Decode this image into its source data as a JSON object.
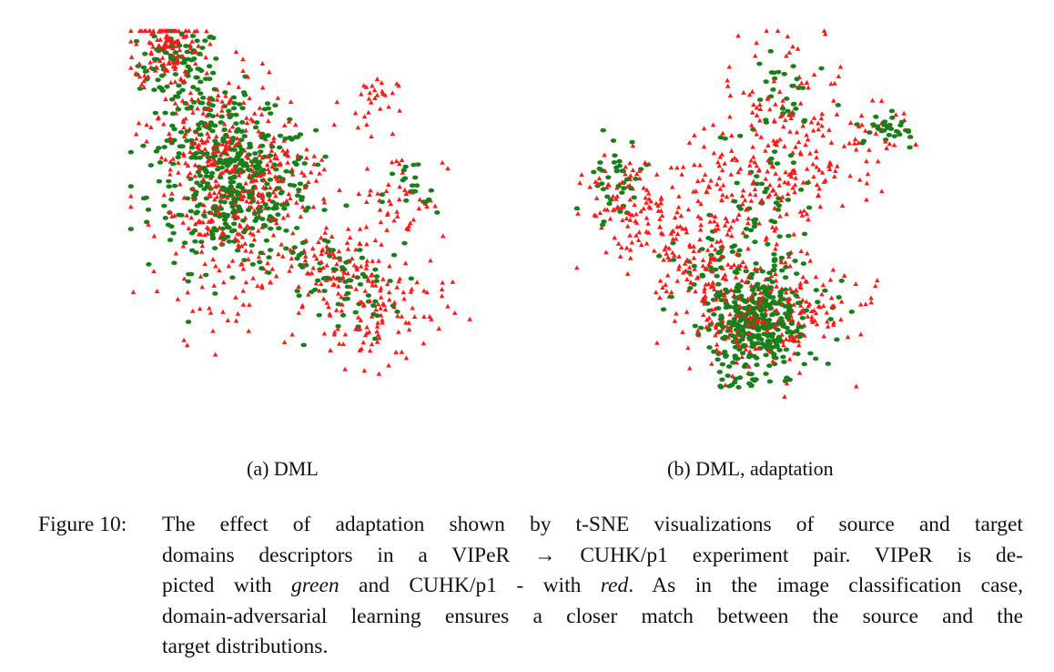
{
  "figure": {
    "label": "Figure 10:",
    "caption_lines": [
      [
        "The effect of adaptation shown by t-SNE visualizations of source and target"
      ],
      [
        "domains descriptors in a VIPeR → CUHK/p1 experiment pair.  VIPeR is de-"
      ],
      [
        "picted with ",
        "green",
        " and CUHK/p1 - with ",
        "red",
        ".  As in the image classification case,"
      ],
      [
        "domain-adversarial learning ensures a closer match between the source and the"
      ],
      [
        "target distributions."
      ]
    ]
  },
  "panels": [
    {
      "caption": "(a) DML"
    },
    {
      "caption": "(b) DML, adaptation"
    }
  ],
  "legend_colors": {
    "source_viper_green": "#1a7f1a",
    "target_cuhk_red": "#ff1a1a"
  },
  "chart_data": [
    {
      "type": "scatter",
      "title": "(a) DML",
      "series": [
        {
          "name": "VIPeR",
          "color": "#1a7f1a",
          "marker": "circle"
        },
        {
          "name": "CUHK/p1",
          "color": "#ff1a1a",
          "marker": "triangle"
        }
      ],
      "clusters": {
        "VIPeR": [
          [
            0.15,
            0.9,
            0.06,
            0.05,
            70
          ],
          [
            0.22,
            0.75,
            0.08,
            0.08,
            90
          ],
          [
            0.3,
            0.55,
            0.12,
            0.1,
            260
          ],
          [
            0.38,
            0.6,
            0.08,
            0.08,
            90
          ],
          [
            0.55,
            0.35,
            0.07,
            0.05,
            40
          ],
          [
            0.68,
            0.3,
            0.06,
            0.06,
            30
          ],
          [
            0.82,
            0.55,
            0.04,
            0.05,
            20
          ]
        ],
        "CUHK/p1": [
          [
            0.12,
            0.95,
            0.05,
            0.05,
            140
          ],
          [
            0.25,
            0.7,
            0.1,
            0.1,
            170
          ],
          [
            0.3,
            0.5,
            0.1,
            0.12,
            260
          ],
          [
            0.45,
            0.6,
            0.06,
            0.05,
            50
          ],
          [
            0.6,
            0.35,
            0.08,
            0.07,
            90
          ],
          [
            0.72,
            0.25,
            0.1,
            0.08,
            120
          ],
          [
            0.8,
            0.55,
            0.06,
            0.06,
            40
          ],
          [
            0.7,
            0.8,
            0.04,
            0.04,
            30
          ]
        ]
      },
      "xlim": [
        0,
        1
      ],
      "ylim": [
        0,
        1
      ],
      "axes_visible": false
    },
    {
      "type": "scatter",
      "title": "(b) DML, adaptation",
      "series": [
        {
          "name": "VIPeR",
          "color": "#1a7f1a",
          "marker": "circle"
        },
        {
          "name": "CUHK/p1",
          "color": "#ff1a1a",
          "marker": "triangle"
        }
      ],
      "clusters": {
        "VIPeR": [
          [
            0.52,
            0.2,
            0.06,
            0.06,
            260
          ],
          [
            0.6,
            0.25,
            0.1,
            0.07,
            80
          ],
          [
            0.45,
            0.35,
            0.1,
            0.08,
            70
          ],
          [
            0.12,
            0.6,
            0.04,
            0.05,
            40
          ],
          [
            0.55,
            0.55,
            0.06,
            0.08,
            40
          ],
          [
            0.6,
            0.82,
            0.05,
            0.05,
            30
          ],
          [
            0.9,
            0.72,
            0.04,
            0.03,
            30
          ],
          [
            0.52,
            0.05,
            0.06,
            0.02,
            20
          ]
        ],
        "CUHK/p1": [
          [
            0.5,
            0.22,
            0.1,
            0.08,
            160
          ],
          [
            0.65,
            0.25,
            0.12,
            0.05,
            110
          ],
          [
            0.35,
            0.4,
            0.12,
            0.07,
            140
          ],
          [
            0.18,
            0.55,
            0.08,
            0.07,
            90
          ],
          [
            0.62,
            0.75,
            0.08,
            0.1,
            120
          ],
          [
            0.45,
            0.55,
            0.1,
            0.08,
            80
          ],
          [
            0.88,
            0.7,
            0.05,
            0.04,
            30
          ],
          [
            0.65,
            0.62,
            0.1,
            0.06,
            60
          ]
        ]
      },
      "xlim": [
        0,
        1
      ],
      "ylim": [
        0,
        1
      ],
      "axes_visible": false
    }
  ]
}
